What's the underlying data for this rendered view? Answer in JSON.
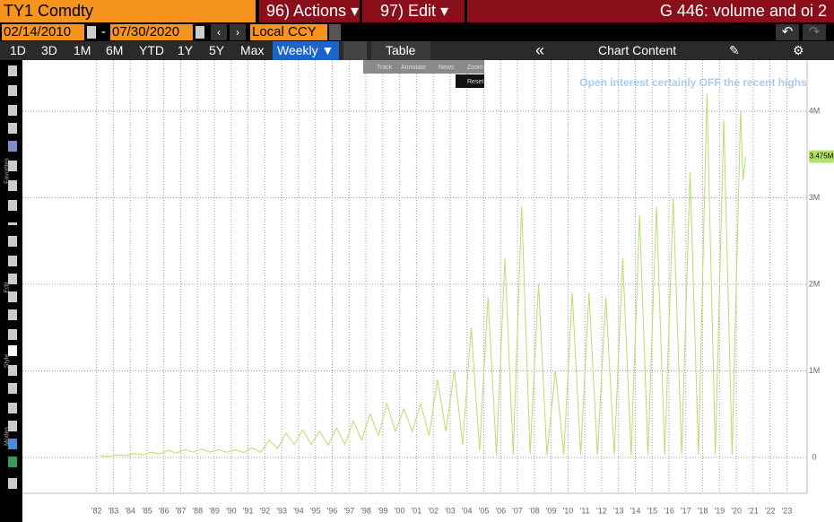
{
  "header": {
    "ticker": "TY1 Comdty",
    "actions": "96) Actions ▾",
    "edit": "97) Edit ▾",
    "function": "G 446: volume and oi 2"
  },
  "dates": {
    "start": "02/14/2010",
    "separator": "-",
    "end": "07/30/2020",
    "currency": "Local CCY"
  },
  "toolbar": {
    "periods": [
      "1D",
      "3D",
      "1M",
      "6M",
      "YTD",
      "1Y",
      "5Y",
      "Max"
    ],
    "frequency": "Weekly ▼",
    "table": "Table",
    "content": "Chart Content"
  },
  "popup": {
    "tools": [
      "Track",
      "Annotate",
      "News",
      "Zoom"
    ],
    "reset": "Reset"
  },
  "sidebar": [
    "Favorites",
    "Edit",
    "Style",
    "Modes"
  ],
  "chart_data": {
    "type": "line",
    "annotation": "Open interest certainly OFF the recent highs",
    "color": "#b5e06a",
    "grid": true,
    "x": [
      1982.25,
      1982.75,
      1983.25,
      1983.75,
      1984.25,
      1984.75,
      1985.25,
      1985.75,
      1986.25,
      1986.75,
      1987.25,
      1987.75,
      1988.25,
      1988.75,
      1989.25,
      1989.75,
      1990.25,
      1990.75,
      1991.25,
      1991.75,
      1992.25,
      1992.75,
      1993.25,
      1993.75,
      1994.25,
      1994.75,
      1995.25,
      1995.75,
      1996.25,
      1996.75,
      1997.25,
      1997.75,
      1998.25,
      1998.75,
      1999.25,
      1999.75,
      2000.25,
      2000.75,
      2001.25,
      2001.75,
      2002.25,
      2002.75,
      2003.25,
      2003.75,
      2004.25,
      2004.75,
      2005.25,
      2005.75,
      2006.25,
      2006.75,
      2007.25,
      2007.75,
      2008.25,
      2008.75,
      2009.25,
      2009.75,
      2010.25,
      2010.75,
      2011.25,
      2011.75,
      2012.25,
      2012.75,
      2013.25,
      2013.75,
      2014.25,
      2014.75,
      2015.25,
      2015.75,
      2016.25,
      2016.75,
      2017.25,
      2017.75,
      2018.25,
      2018.75,
      2019.25,
      2019.75,
      2020.25,
      2020.4,
      2020.55
    ],
    "values": [
      20000,
      10000,
      30000,
      20000,
      45000,
      30000,
      60000,
      40000,
      80000,
      50000,
      90000,
      60000,
      95000,
      60000,
      90000,
      60000,
      85000,
      55000,
      110000,
      60000,
      200000,
      100000,
      280000,
      150000,
      320000,
      150000,
      300000,
      140000,
      340000,
      150000,
      420000,
      200000,
      500000,
      250000,
      620000,
      300000,
      560000,
      300000,
      620000,
      250000,
      900000,
      300000,
      1000000,
      150000,
      1500000,
      80000,
      1850000,
      30000,
      2300000,
      30000,
      2900000,
      30000,
      2000000,
      30000,
      1000000,
      30000,
      1900000,
      30000,
      1900000,
      30000,
      1850000,
      30000,
      2300000,
      30000,
      2800000,
      30000,
      2900000,
      30000,
      3000000,
      30000,
      3300000,
      30000,
      4200000,
      30000,
      3900000,
      30000,
      4000000,
      3200000,
      3475000
    ],
    "last_label": "3.475M",
    "xlim": [
      1977.6,
      2024.2
    ],
    "xticks": [
      {
        "value": 1982,
        "label": "'82"
      },
      {
        "value": 1983,
        "label": "'83"
      },
      {
        "value": 1984,
        "label": "'84"
      },
      {
        "value": 1985,
        "label": "'85"
      },
      {
        "value": 1986,
        "label": "'86"
      },
      {
        "value": 1987,
        "label": "'87"
      },
      {
        "value": 1988,
        "label": "'88"
      },
      {
        "value": 1989,
        "label": "'89"
      },
      {
        "value": 1990,
        "label": "'90"
      },
      {
        "value": 1991,
        "label": "'91"
      },
      {
        "value": 1992,
        "label": "'92"
      },
      {
        "value": 1993,
        "label": "'93"
      },
      {
        "value": 1994,
        "label": "'94"
      },
      {
        "value": 1995,
        "label": "'95"
      },
      {
        "value": 1996,
        "label": "'96"
      },
      {
        "value": 1997,
        "label": "'97"
      },
      {
        "value": 1998,
        "label": "'98"
      },
      {
        "value": 1999,
        "label": "'99"
      },
      {
        "value": 2000,
        "label": "'00"
      },
      {
        "value": 2001,
        "label": "'01"
      },
      {
        "value": 2002,
        "label": "'02"
      },
      {
        "value": 2003,
        "label": "'03"
      },
      {
        "value": 2004,
        "label": "'04"
      },
      {
        "value": 2005,
        "label": "'05"
      },
      {
        "value": 2006,
        "label": "'06"
      },
      {
        "value": 2007,
        "label": "'07"
      },
      {
        "value": 2008,
        "label": "'08"
      },
      {
        "value": 2009,
        "label": "'09"
      },
      {
        "value": 2010,
        "label": "'10"
      },
      {
        "value": 2011,
        "label": "'11"
      },
      {
        "value": 2012,
        "label": "'12"
      },
      {
        "value": 2013,
        "label": "'13"
      },
      {
        "value": 2014,
        "label": "'14"
      },
      {
        "value": 2015,
        "label": "'15"
      },
      {
        "value": 2016,
        "label": "'16"
      },
      {
        "value": 2017,
        "label": "'17"
      },
      {
        "value": 2018,
        "label": "'18"
      },
      {
        "value": 2019,
        "label": "'19"
      },
      {
        "value": 2020,
        "label": "'20"
      },
      {
        "value": 2021,
        "label": "'21"
      },
      {
        "value": 2022,
        "label": "'22"
      },
      {
        "value": 2023,
        "label": "'23"
      }
    ],
    "ylim": [
      -415000,
      4590000
    ],
    "yticks": [
      0,
      {
        "value": 1000000,
        "label": "1M"
      },
      {
        "value": 2000000,
        "label": "2M"
      },
      {
        "value": 3000000,
        "label": "3M"
      },
      {
        "value": 4000000,
        "label": "4M"
      }
    ]
  }
}
